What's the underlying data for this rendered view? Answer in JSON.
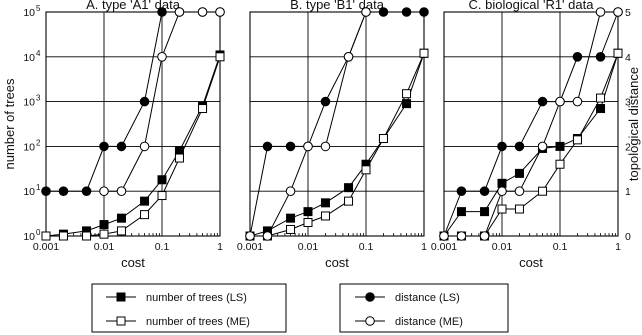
{
  "chart_data": [
    {
      "type": "line",
      "title": "A. type 'A1' data",
      "xlabel": "cost",
      "ylabel": "number of trees",
      "xscale": "log",
      "xlim": [
        0.001,
        1
      ],
      "yscale": "log",
      "ylim": [
        1,
        100000
      ],
      "y2lim": [
        0,
        5
      ],
      "x_ticks": [
        "0.001",
        "0.01",
        "0.1",
        "1"
      ],
      "y_ticks": [
        "10",
        "10",
        "10",
        "10",
        "10",
        "10"
      ],
      "y_tick_exponents": [
        "0",
        "1",
        "2",
        "3",
        "4",
        "5"
      ],
      "grid": true,
      "series": [
        {
          "name": "number of trees (LS)",
          "marker": "filled-square",
          "axis": "left",
          "x": [
            0.001,
            0.002,
            0.005,
            0.01,
            0.02,
            0.05,
            0.1,
            0.2,
            0.5,
            1
          ],
          "y": [
            1,
            1.1,
            1.3,
            1.8,
            2.5,
            6,
            18,
            80,
            800,
            11000
          ]
        },
        {
          "name": "number of trees (ME)",
          "marker": "open-square",
          "axis": "left",
          "x": [
            0.001,
            0.002,
            0.005,
            0.01,
            0.02,
            0.05,
            0.1,
            0.2,
            0.5,
            1
          ],
          "y": [
            1,
            1,
            1,
            1.1,
            1.3,
            3,
            8,
            55,
            700,
            10000
          ]
        },
        {
          "name": "distance (LS)",
          "marker": "filled-circle",
          "axis": "right",
          "x": [
            0.001,
            0.002,
            0.005,
            0.01,
            0.02,
            0.05,
            0.1,
            0.2,
            0.5,
            1
          ],
          "y": [
            1,
            1,
            1,
            2,
            2,
            3,
            5,
            5,
            5,
            5
          ]
        },
        {
          "name": "distance (ME)",
          "marker": "open-circle",
          "axis": "right",
          "x": [
            0.01,
            0.02,
            0.05,
            0.1,
            0.2,
            0.5,
            1
          ],
          "y": [
            1,
            1,
            2,
            4,
            5,
            5,
            5
          ]
        }
      ]
    },
    {
      "type": "line",
      "title": "B. type 'B1' data",
      "xlabel": "cost",
      "ylabel": "",
      "xscale": "log",
      "xlim": [
        0.001,
        1
      ],
      "yscale": "log",
      "ylim": [
        1,
        100000
      ],
      "y2lim": [
        0,
        5
      ],
      "x_ticks": [
        "0.001",
        "0.01",
        "0.1",
        "1"
      ],
      "grid": true,
      "series": [
        {
          "name": "number of trees (LS)",
          "marker": "filled-square",
          "axis": "left",
          "x": [
            0.001,
            0.002,
            0.005,
            0.01,
            0.02,
            0.05,
            0.1,
            0.2,
            0.5,
            1
          ],
          "y": [
            1,
            1.3,
            2.5,
            3.5,
            5.5,
            12,
            40,
            150,
            900,
            12000
          ]
        },
        {
          "name": "number of trees (ME)",
          "marker": "open-square",
          "axis": "left",
          "x": [
            0.001,
            0.002,
            0.005,
            0.01,
            0.02,
            0.05,
            0.1,
            0.2,
            0.5,
            1
          ],
          "y": [
            1,
            1,
            1.4,
            2,
            2.8,
            6,
            30,
            150,
            1500,
            12000
          ]
        },
        {
          "name": "distance (LS)",
          "marker": "filled-circle",
          "axis": "right",
          "x": [
            0.001,
            0.002,
            0.005,
            0.01,
            0.02,
            0.05,
            0.1,
            0.2,
            0.5,
            1
          ],
          "y": [
            0,
            2,
            2,
            2,
            3,
            4,
            5,
            5,
            5,
            5
          ]
        },
        {
          "name": "distance (ME)",
          "marker": "open-circle",
          "axis": "right",
          "x": [
            0.001,
            0.002,
            0.005,
            0.01,
            0.02,
            0.05,
            0.1
          ],
          "y": [
            0,
            0,
            1,
            2,
            2,
            4,
            5
          ]
        }
      ]
    },
    {
      "type": "line",
      "title": "C. biological 'R1' data",
      "xlabel": "cost",
      "ylabel": "",
      "y2label": "topological distance",
      "xscale": "log",
      "xlim": [
        0.001,
        1
      ],
      "yscale": "log",
      "ylim": [
        1,
        100000
      ],
      "y2lim": [
        0,
        5
      ],
      "x_ticks": [
        "0.001",
        "0.01",
        "0.1",
        "1"
      ],
      "y2_ticks": [
        "0",
        "1",
        "2",
        "3",
        "4",
        "5"
      ],
      "grid": true,
      "series": [
        {
          "name": "number of trees (LS)",
          "marker": "filled-square",
          "axis": "left",
          "x": [
            0.001,
            0.002,
            0.005,
            0.01,
            0.02,
            0.05,
            0.1,
            0.2,
            0.5,
            1
          ],
          "y": [
            1,
            3.5,
            3.5,
            15,
            25,
            90,
            100,
            150,
            700,
            12000
          ]
        },
        {
          "name": "number of trees (ME)",
          "marker": "open-square",
          "axis": "left",
          "x": [
            0.001,
            0.002,
            0.005,
            0.01,
            0.02,
            0.05,
            0.1,
            0.2,
            0.5,
            1
          ],
          "y": [
            1,
            1,
            1,
            4,
            4,
            10,
            40,
            140,
            1200,
            12000
          ]
        },
        {
          "name": "distance (LS)",
          "marker": "filled-circle",
          "axis": "right",
          "x": [
            0.001,
            0.002,
            0.005,
            0.01,
            0.02,
            0.05,
            0.1,
            0.2,
            0.5,
            1
          ],
          "y": [
            0,
            1,
            1,
            2,
            2,
            3,
            3,
            4,
            4,
            5
          ]
        },
        {
          "name": "distance (ME)",
          "marker": "open-circle",
          "axis": "right",
          "x": [
            0.001,
            0.002,
            0.005,
            0.01,
            0.02,
            0.05,
            0.1,
            0.2,
            0.5,
            1
          ],
          "y": [
            0,
            0,
            0,
            1,
            1,
            2,
            3,
            3,
            5,
            5
          ]
        }
      ]
    }
  ],
  "legend": {
    "placement": "bottom",
    "entries": [
      {
        "label": "number of trees (LS)",
        "marker": "filled-square"
      },
      {
        "label": "number of trees (ME)",
        "marker": "open-square"
      },
      {
        "label": "distance (LS)",
        "marker": "filled-circle"
      },
      {
        "label": "distance (ME)",
        "marker": "open-circle"
      }
    ]
  }
}
